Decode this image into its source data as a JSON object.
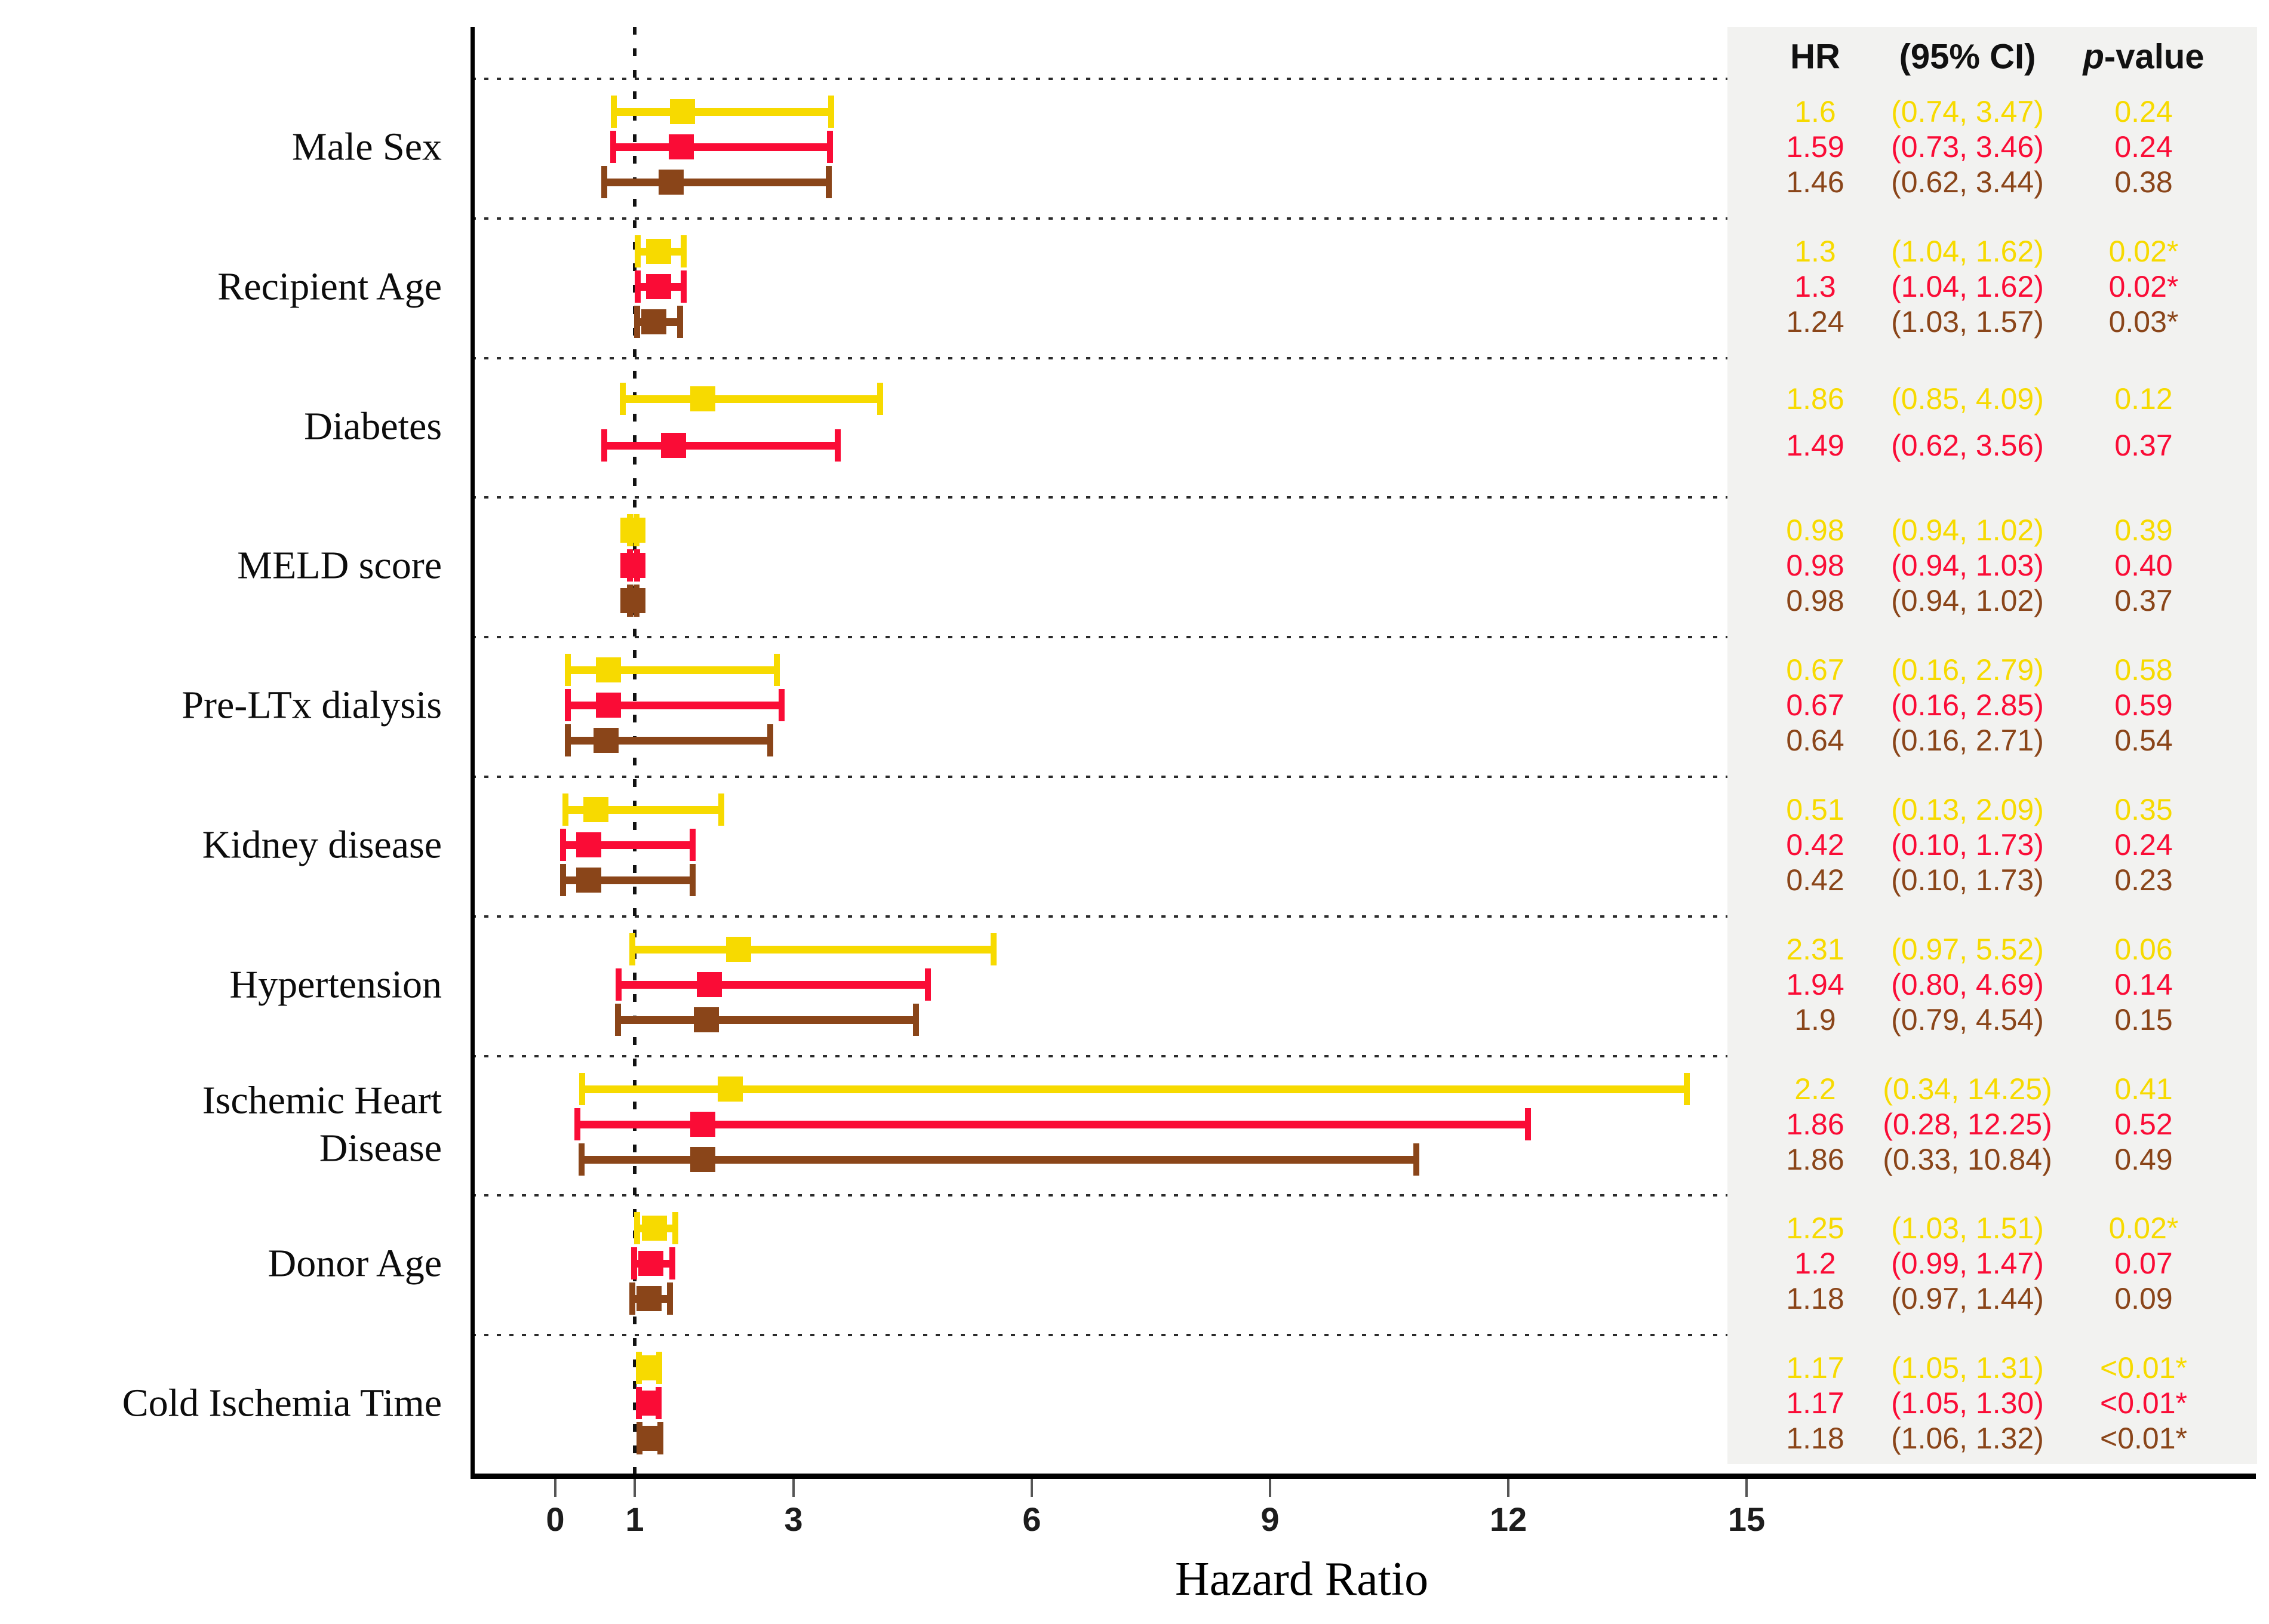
{
  "chart_data": {
    "type": "scatter",
    "subtype": "forest-plot",
    "xlabel": "Hazard Ratio",
    "x_ticks": [
      0,
      1,
      3,
      6,
      9,
      12,
      15
    ],
    "xlim": [
      0,
      15
    ],
    "reference_line": 1,
    "grid": "dotted-row-separators",
    "legend_position": "none",
    "columns": [
      "HR",
      "(95% CI)",
      "p-value"
    ],
    "series_colors": {
      "yellow": "#f7da00",
      "red": "#fa0c36",
      "brown": "#8a4519"
    },
    "panel_background": "#f2f2f0",
    "rows": [
      {
        "label": "Male Sex",
        "estimates": [
          {
            "series": "yellow",
            "hr": 1.6,
            "lo": 0.74,
            "hi": 3.47,
            "hr_text": "1.6",
            "ci_text": "(0.74, 3.47)",
            "p_text": "0.24"
          },
          {
            "series": "red",
            "hr": 1.59,
            "lo": 0.73,
            "hi": 3.46,
            "hr_text": "1.59",
            "ci_text": "(0.73, 3.46)",
            "p_text": "0.24"
          },
          {
            "series": "brown",
            "hr": 1.46,
            "lo": 0.62,
            "hi": 3.44,
            "hr_text": "1.46",
            "ci_text": "(0.62, 3.44)",
            "p_text": "0.38"
          }
        ]
      },
      {
        "label": "Recipient Age",
        "estimates": [
          {
            "series": "yellow",
            "hr": 1.3,
            "lo": 1.04,
            "hi": 1.62,
            "hr_text": "1.3",
            "ci_text": "(1.04, 1.62)",
            "p_text": "0.02*"
          },
          {
            "series": "red",
            "hr": 1.3,
            "lo": 1.04,
            "hi": 1.62,
            "hr_text": "1.3",
            "ci_text": "(1.04, 1.62)",
            "p_text": "0.02*"
          },
          {
            "series": "brown",
            "hr": 1.24,
            "lo": 1.03,
            "hi": 1.57,
            "hr_text": "1.24",
            "ci_text": "(1.03, 1.57)",
            "p_text": "0.03*"
          }
        ]
      },
      {
        "label": "Diabetes",
        "estimates": [
          {
            "series": "yellow",
            "hr": 1.86,
            "lo": 0.85,
            "hi": 4.09,
            "hr_text": "1.86",
            "ci_text": "(0.85, 4.09)",
            "p_text": "0.12"
          },
          {
            "series": "red",
            "hr": 1.49,
            "lo": 0.62,
            "hi": 3.56,
            "hr_text": "1.49",
            "ci_text": "(0.62, 3.56)",
            "p_text": "0.37"
          }
        ]
      },
      {
        "label": "MELD score",
        "estimates": [
          {
            "series": "yellow",
            "hr": 0.98,
            "lo": 0.94,
            "hi": 1.02,
            "hr_text": "0.98",
            "ci_text": "(0.94, 1.02)",
            "p_text": "0.39"
          },
          {
            "series": "red",
            "hr": 0.98,
            "lo": 0.94,
            "hi": 1.03,
            "hr_text": "0.98",
            "ci_text": "(0.94, 1.03)",
            "p_text": "0.40"
          },
          {
            "series": "brown",
            "hr": 0.98,
            "lo": 0.94,
            "hi": 1.02,
            "hr_text": "0.98",
            "ci_text": "(0.94, 1.02)",
            "p_text": "0.37"
          }
        ]
      },
      {
        "label": "Pre-LTx dialysis",
        "estimates": [
          {
            "series": "yellow",
            "hr": 0.67,
            "lo": 0.16,
            "hi": 2.79,
            "hr_text": "0.67",
            "ci_text": "(0.16, 2.79)",
            "p_text": "0.58"
          },
          {
            "series": "red",
            "hr": 0.67,
            "lo": 0.16,
            "hi": 2.85,
            "hr_text": "0.67",
            "ci_text": "(0.16, 2.85)",
            "p_text": "0.59"
          },
          {
            "series": "brown",
            "hr": 0.64,
            "lo": 0.16,
            "hi": 2.71,
            "hr_text": "0.64",
            "ci_text": "(0.16, 2.71)",
            "p_text": "0.54"
          }
        ]
      },
      {
        "label": "Kidney disease",
        "estimates": [
          {
            "series": "yellow",
            "hr": 0.51,
            "lo": 0.13,
            "hi": 2.09,
            "hr_text": "0.51",
            "ci_text": "(0.13, 2.09)",
            "p_text": "0.35"
          },
          {
            "series": "red",
            "hr": 0.42,
            "lo": 0.1,
            "hi": 1.73,
            "hr_text": "0.42",
            "ci_text": "(0.10, 1.73)",
            "p_text": "0.24"
          },
          {
            "series": "brown",
            "hr": 0.42,
            "lo": 0.1,
            "hi": 1.73,
            "hr_text": "0.42",
            "ci_text": "(0.10, 1.73)",
            "p_text": "0.23"
          }
        ]
      },
      {
        "label": "Hypertension",
        "estimates": [
          {
            "series": "yellow",
            "hr": 2.31,
            "lo": 0.97,
            "hi": 5.52,
            "hr_text": "2.31",
            "ci_text": "(0.97, 5.52)",
            "p_text": "0.06"
          },
          {
            "series": "red",
            "hr": 1.94,
            "lo": 0.8,
            "hi": 4.69,
            "hr_text": "1.94",
            "ci_text": "(0.80, 4.69)",
            "p_text": "0.14"
          },
          {
            "series": "brown",
            "hr": 1.9,
            "lo": 0.79,
            "hi": 4.54,
            "hr_text": "1.9",
            "ci_text": "(0.79, 4.54)",
            "p_text": "0.15"
          }
        ]
      },
      {
        "label": "Ischemic Heart\nDisease",
        "estimates": [
          {
            "series": "yellow",
            "hr": 2.2,
            "lo": 0.34,
            "hi": 14.25,
            "hr_text": "2.2",
            "ci_text": "(0.34, 14.25)",
            "p_text": "0.41"
          },
          {
            "series": "red",
            "hr": 1.86,
            "lo": 0.28,
            "hi": 12.25,
            "hr_text": "1.86",
            "ci_text": "(0.28, 12.25)",
            "p_text": "0.52"
          },
          {
            "series": "brown",
            "hr": 1.86,
            "lo": 0.33,
            "hi": 10.84,
            "hr_text": "1.86",
            "ci_text": "(0.33, 10.84)",
            "p_text": "0.49"
          }
        ]
      },
      {
        "label": "Donor Age",
        "estimates": [
          {
            "series": "yellow",
            "hr": 1.25,
            "lo": 1.03,
            "hi": 1.51,
            "hr_text": "1.25",
            "ci_text": "(1.03, 1.51)",
            "p_text": "0.02*"
          },
          {
            "series": "red",
            "hr": 1.2,
            "lo": 0.99,
            "hi": 1.47,
            "hr_text": "1.2",
            "ci_text": "(0.99, 1.47)",
            "p_text": "0.07"
          },
          {
            "series": "brown",
            "hr": 1.18,
            "lo": 0.97,
            "hi": 1.44,
            "hr_text": "1.18",
            "ci_text": "(0.97, 1.44)",
            "p_text": "0.09"
          }
        ]
      },
      {
        "label": "Cold Ischemia Time",
        "estimates": [
          {
            "series": "yellow",
            "hr": 1.17,
            "lo": 1.05,
            "hi": 1.31,
            "hr_text": "1.17",
            "ci_text": "(1.05, 1.31)",
            "p_text": "<0.01*"
          },
          {
            "series": "red",
            "hr": 1.17,
            "lo": 1.05,
            "hi": 1.3,
            "hr_text": "1.17",
            "ci_text": "(1.05, 1.30)",
            "p_text": "<0.01*"
          },
          {
            "series": "brown",
            "hr": 1.18,
            "lo": 1.06,
            "hi": 1.32,
            "hr_text": "1.18",
            "ci_text": "(1.06, 1.32)",
            "p_text": "<0.01*"
          }
        ]
      }
    ]
  }
}
